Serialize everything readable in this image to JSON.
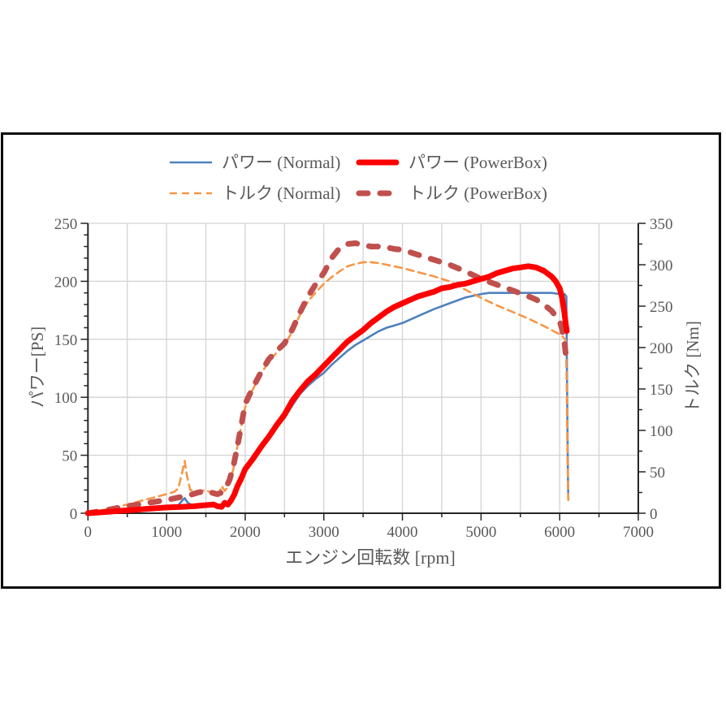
{
  "chart_data": {
    "type": "line",
    "title": "",
    "xlabel": "エンジン回転数 [rpm]",
    "ylabel_left": "パワー[PS]",
    "ylabel_right": "トルク [Nm]",
    "legend_position": "top",
    "grid": {
      "x_minor_step": 500,
      "y_left_step": 50,
      "on": true
    },
    "x_axis": {
      "min": 0,
      "max": 7000,
      "major_ticks": [
        0,
        1000,
        2000,
        3000,
        4000,
        5000,
        6000,
        7000
      ],
      "minor_step": 500
    },
    "y_axis_left": {
      "min": 0,
      "max": 250,
      "major_ticks": [
        0,
        50,
        100,
        150,
        200,
        250
      ],
      "minor_step": 10
    },
    "y_axis_right": {
      "min": 0,
      "max": 350,
      "major_ticks": [
        0,
        50,
        100,
        150,
        200,
        250,
        300,
        350
      ],
      "minor_step": 25
    },
    "colors": {
      "grid": "#d3d3d3",
      "axis": "#262626",
      "tick_label": "#595959",
      "frame": "#0c0c0c",
      "background": "#ffffff"
    },
    "series": [
      {
        "name": "power-normal",
        "label": "パワー (Normal)",
        "axis": "left",
        "unit": "PS",
        "color": "#4f81bd",
        "stroke_width": 2.6,
        "dash": "",
        "points": [
          [
            0,
            0
          ],
          [
            150,
            1
          ],
          [
            300,
            2
          ],
          [
            500,
            3.5
          ],
          [
            700,
            4.5
          ],
          [
            900,
            5.5
          ],
          [
            1050,
            6
          ],
          [
            1150,
            7
          ],
          [
            1200,
            11
          ],
          [
            1230,
            13
          ],
          [
            1270,
            9
          ],
          [
            1320,
            7
          ],
          [
            1450,
            7.5
          ],
          [
            1550,
            8
          ],
          [
            1620,
            7
          ],
          [
            1680,
            6
          ],
          [
            1720,
            6.5
          ],
          [
            1760,
            8.5
          ],
          [
            1800,
            10
          ],
          [
            1850,
            16
          ],
          [
            1900,
            23
          ],
          [
            1950,
            30
          ],
          [
            2000,
            38
          ],
          [
            2100,
            47
          ],
          [
            2200,
            56
          ],
          [
            2300,
            65
          ],
          [
            2400,
            74
          ],
          [
            2500,
            82
          ],
          [
            2600,
            93
          ],
          [
            2700,
            103
          ],
          [
            2800,
            110
          ],
          [
            2900,
            116
          ],
          [
            3000,
            121
          ],
          [
            3100,
            128
          ],
          [
            3200,
            134
          ],
          [
            3300,
            140
          ],
          [
            3400,
            145
          ],
          [
            3500,
            149
          ],
          [
            3600,
            153
          ],
          [
            3700,
            157
          ],
          [
            3800,
            160
          ],
          [
            3900,
            162
          ],
          [
            4000,
            164
          ],
          [
            4200,
            170
          ],
          [
            4400,
            176
          ],
          [
            4600,
            181
          ],
          [
            4800,
            186
          ],
          [
            5000,
            189
          ],
          [
            5100,
            190
          ],
          [
            5300,
            190
          ],
          [
            5500,
            190
          ],
          [
            5700,
            190
          ],
          [
            5900,
            190
          ],
          [
            6000,
            189
          ],
          [
            6060,
            189
          ],
          [
            6085,
            187
          ],
          [
            6095,
            100
          ],
          [
            6105,
            30
          ],
          [
            6110,
            12
          ]
        ]
      },
      {
        "name": "torque-normal",
        "label": "トルク (Normal)",
        "axis": "right",
        "unit": "Nm",
        "color": "#f79646",
        "stroke_width": 2.6,
        "dash": "9 6",
        "points": [
          [
            0,
            0
          ],
          [
            200,
            4
          ],
          [
            400,
            8
          ],
          [
            600,
            13
          ],
          [
            800,
            18
          ],
          [
            1000,
            23
          ],
          [
            1100,
            26
          ],
          [
            1150,
            30
          ],
          [
            1200,
            50
          ],
          [
            1230,
            63
          ],
          [
            1260,
            45
          ],
          [
            1300,
            28
          ],
          [
            1400,
            26
          ],
          [
            1500,
            28
          ],
          [
            1560,
            25
          ],
          [
            1620,
            21
          ],
          [
            1660,
            20
          ],
          [
            1700,
            33
          ],
          [
            1740,
            27
          ],
          [
            1780,
            32
          ],
          [
            1820,
            42
          ],
          [
            1860,
            58
          ],
          [
            1900,
            80
          ],
          [
            1950,
            105
          ],
          [
            2000,
            128
          ],
          [
            2100,
            150
          ],
          [
            2200,
            168
          ],
          [
            2300,
            183
          ],
          [
            2400,
            194
          ],
          [
            2500,
            202
          ],
          [
            2600,
            220
          ],
          [
            2700,
            240
          ],
          [
            2800,
            256
          ],
          [
            2900,
            267
          ],
          [
            3000,
            277
          ],
          [
            3100,
            285
          ],
          [
            3200,
            292
          ],
          [
            3300,
            298
          ],
          [
            3400,
            301
          ],
          [
            3500,
            303
          ],
          [
            3600,
            303
          ],
          [
            3700,
            302
          ],
          [
            3800,
            300
          ],
          [
            3900,
            298
          ],
          [
            4000,
            296
          ],
          [
            4200,
            291
          ],
          [
            4400,
            286
          ],
          [
            4600,
            280
          ],
          [
            4800,
            270
          ],
          [
            5000,
            260
          ],
          [
            5200,
            251
          ],
          [
            5400,
            243
          ],
          [
            5600,
            235
          ],
          [
            5800,
            226
          ],
          [
            6000,
            216
          ],
          [
            6050,
            212
          ],
          [
            6080,
            208
          ],
          [
            6090,
            150
          ],
          [
            6100,
            60
          ],
          [
            6110,
            16
          ]
        ]
      },
      {
        "name": "torque-powerbox",
        "label": "トルク (PowerBox)",
        "axis": "right",
        "unit": "Nm",
        "color": "#c0504d",
        "stroke_width": 7,
        "dash": "11 15",
        "points": [
          [
            0,
            0
          ],
          [
            200,
            3
          ],
          [
            400,
            7
          ],
          [
            600,
            10
          ],
          [
            800,
            13
          ],
          [
            1000,
            16
          ],
          [
            1200,
            20
          ],
          [
            1300,
            22
          ],
          [
            1400,
            25
          ],
          [
            1500,
            27
          ],
          [
            1570,
            25
          ],
          [
            1640,
            23
          ],
          [
            1700,
            25
          ],
          [
            1750,
            30
          ],
          [
            1800,
            40
          ],
          [
            1850,
            57
          ],
          [
            1900,
            80
          ],
          [
            1950,
            106
          ],
          [
            2000,
            132
          ],
          [
            2100,
            152
          ],
          [
            2200,
            170
          ],
          [
            2300,
            186
          ],
          [
            2400,
            196
          ],
          [
            2500,
            205
          ],
          [
            2600,
            222
          ],
          [
            2700,
            243
          ],
          [
            2800,
            262
          ],
          [
            2900,
            277
          ],
          [
            3000,
            290
          ],
          [
            3100,
            308
          ],
          [
            3200,
            320
          ],
          [
            3300,
            325
          ],
          [
            3400,
            326
          ],
          [
            3500,
            324
          ],
          [
            3600,
            322
          ],
          [
            3700,
            322
          ],
          [
            3800,
            321
          ],
          [
            3900,
            319
          ],
          [
            4000,
            318
          ],
          [
            4200,
            312
          ],
          [
            4400,
            306
          ],
          [
            4600,
            300
          ],
          [
            4800,
            292
          ],
          [
            5000,
            283
          ],
          [
            5200,
            276
          ],
          [
            5400,
            269
          ],
          [
            5600,
            262
          ],
          [
            5700,
            258
          ],
          [
            5800,
            252
          ],
          [
            5900,
            244
          ],
          [
            6000,
            232
          ],
          [
            6030,
            222
          ],
          [
            6060,
            206
          ],
          [
            6090,
            182
          ]
        ]
      },
      {
        "name": "power-powerbox",
        "label": "パワー (PowerBox)",
        "axis": "left",
        "unit": "PS",
        "color": "#fe0000",
        "stroke_width": 7,
        "dash": "",
        "points": [
          [
            0,
            0
          ],
          [
            200,
            1
          ],
          [
            400,
            2
          ],
          [
            600,
            3
          ],
          [
            800,
            4
          ],
          [
            1000,
            5
          ],
          [
            1200,
            5.5
          ],
          [
            1350,
            6
          ],
          [
            1500,
            7
          ],
          [
            1600,
            7.5
          ],
          [
            1650,
            6
          ],
          [
            1700,
            5.5
          ],
          [
            1740,
            9
          ],
          [
            1780,
            7.5
          ],
          [
            1820,
            11
          ],
          [
            1860,
            16
          ],
          [
            1900,
            23
          ],
          [
            1950,
            30
          ],
          [
            2000,
            38
          ],
          [
            2100,
            47
          ],
          [
            2200,
            57
          ],
          [
            2300,
            66
          ],
          [
            2400,
            76
          ],
          [
            2500,
            85
          ],
          [
            2600,
            97
          ],
          [
            2700,
            106
          ],
          [
            2800,
            114
          ],
          [
            2900,
            120
          ],
          [
            3000,
            127
          ],
          [
            3100,
            134
          ],
          [
            3200,
            141
          ],
          [
            3300,
            148
          ],
          [
            3400,
            153
          ],
          [
            3500,
            158
          ],
          [
            3600,
            164
          ],
          [
            3700,
            169
          ],
          [
            3800,
            174
          ],
          [
            3900,
            178
          ],
          [
            4000,
            181
          ],
          [
            4100,
            184
          ],
          [
            4200,
            187
          ],
          [
            4300,
            189
          ],
          [
            4400,
            191
          ],
          [
            4500,
            194
          ],
          [
            4600,
            195
          ],
          [
            4700,
            197
          ],
          [
            4800,
            198
          ],
          [
            4900,
            200
          ],
          [
            5000,
            202
          ],
          [
            5100,
            204
          ],
          [
            5200,
            207
          ],
          [
            5300,
            209
          ],
          [
            5400,
            211
          ],
          [
            5500,
            212
          ],
          [
            5600,
            213
          ],
          [
            5700,
            212
          ],
          [
            5800,
            209
          ],
          [
            5900,
            204
          ],
          [
            5950,
            200
          ],
          [
            6000,
            194
          ],
          [
            6030,
            186
          ],
          [
            6060,
            173
          ],
          [
            6080,
            162
          ],
          [
            6090,
            157
          ]
        ]
      }
    ],
    "legend_display_order": [
      "power-normal",
      "power-powerbox",
      "torque-normal",
      "torque-powerbox"
    ]
  }
}
